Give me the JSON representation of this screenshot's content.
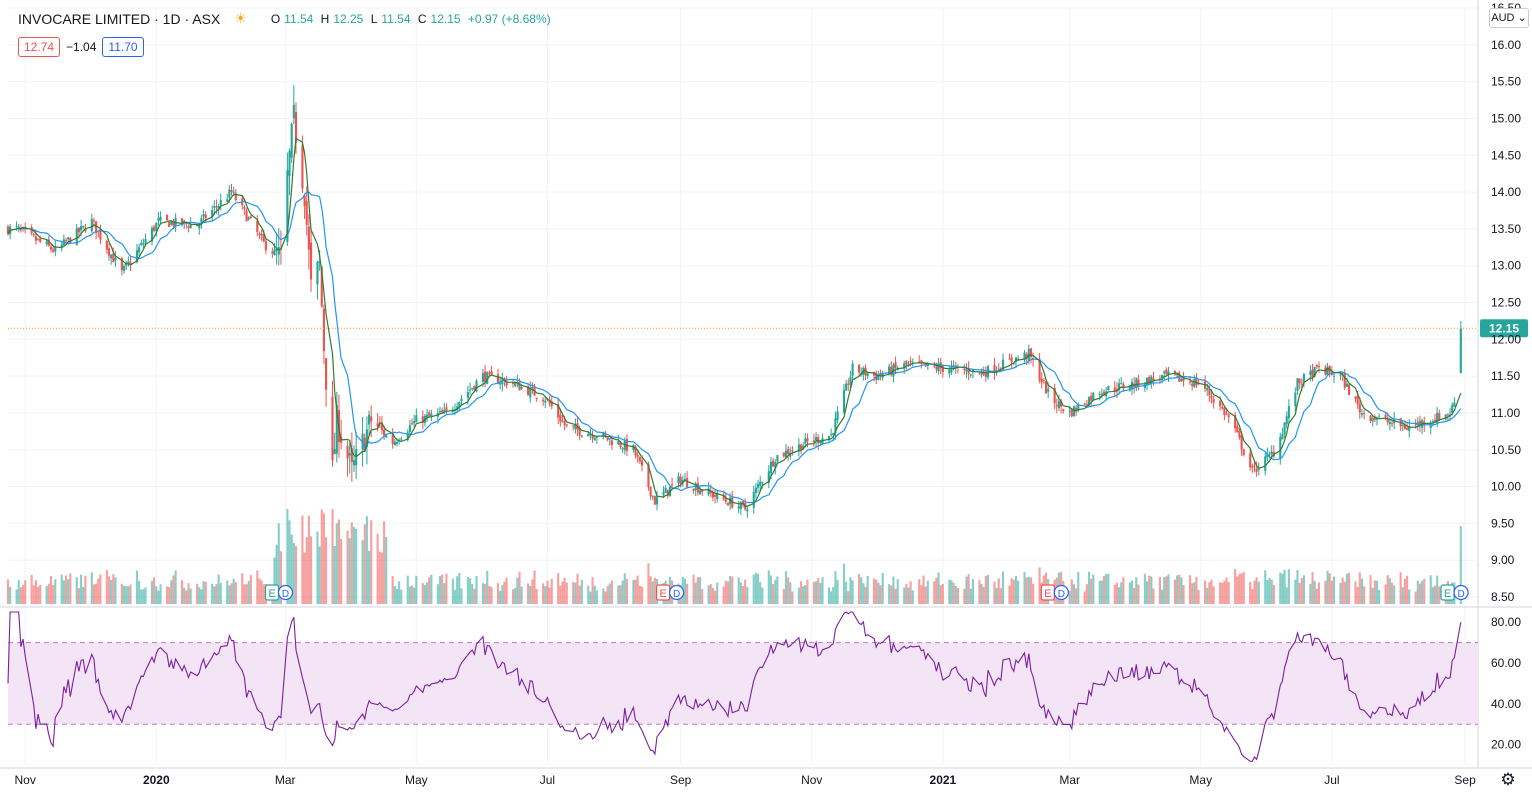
{
  "header": {
    "symbol": "INVOCARE LIMITED · 1D · ASX",
    "weather_icon": "sun-icon",
    "ohlc": {
      "open_label": "O",
      "open": "11.54",
      "high_label": "H",
      "high": "12.25",
      "low_label": "L",
      "low": "11.54",
      "close_label": "C",
      "close": "12.15",
      "change": "+0.97 (+8.68%)"
    },
    "badges": {
      "left": "12.74",
      "middle": "−1.04",
      "right": "11.70"
    },
    "currency": "AUD"
  },
  "colors": {
    "up": "#26a69a",
    "down": "#ef5350",
    "ma_fast": "#2e7d32",
    "ma_slow": "#2196f3",
    "rsi_line": "#7b1fa2",
    "rsi_band": "#f3e5f5",
    "price_line": "#ff9800",
    "grid": "#f0f3fa"
  },
  "chart_data": [
    {
      "type": "candlestick",
      "title": "INVOCARE LIMITED · 1D · ASX",
      "y_ticks": [
        "8.50",
        "9.00",
        "9.50",
        "10.00",
        "10.50",
        "11.00",
        "11.50",
        "12.00",
        "12.50",
        "13.00",
        "13.50",
        "14.00",
        "14.50",
        "15.00",
        "15.50",
        "16.00",
        "16.50"
      ],
      "ylim": [
        8.5,
        16.5
      ],
      "x_ticks": [
        "Nov",
        "2020",
        "Mar",
        "May",
        "Jul",
        "Sep",
        "Nov",
        "2021",
        "Mar",
        "May",
        "Jul",
        "Sep"
      ],
      "x_tick_bold": [
        "2020",
        "2021"
      ],
      "last_price": "12.15",
      "last_price_value": 12.15,
      "close_anchors": [
        [
          "2019-10-28",
          13.5
        ],
        [
          "2019-11-15",
          13.2
        ],
        [
          "2019-12-02",
          13.6
        ],
        [
          "2019-12-16",
          12.9
        ],
        [
          "2020-01-02",
          13.6
        ],
        [
          "2020-01-20",
          13.55
        ],
        [
          "2020-02-05",
          14.0
        ],
        [
          "2020-02-20",
          13.3
        ],
        [
          "2020-02-28",
          13.1
        ],
        [
          "2020-03-02",
          14.2
        ],
        [
          "2020-03-05",
          15.0
        ],
        [
          "2020-03-10",
          14.0
        ],
        [
          "2020-03-13",
          12.7
        ],
        [
          "2020-03-17",
          13.0
        ],
        [
          "2020-03-19",
          11.9
        ],
        [
          "2020-03-23",
          10.2
        ],
        [
          "2020-03-25",
          10.9
        ],
        [
          "2020-04-01",
          10.2
        ],
        [
          "2020-04-10",
          10.9
        ],
        [
          "2020-04-20",
          10.6
        ],
        [
          "2020-05-01",
          10.9
        ],
        [
          "2020-05-15",
          11.0
        ],
        [
          "2020-06-01",
          11.5
        ],
        [
          "2020-06-15",
          11.4
        ],
        [
          "2020-06-30",
          11.2
        ],
        [
          "2020-07-10",
          10.8
        ],
        [
          "2020-07-25",
          10.7
        ],
        [
          "2020-08-10",
          10.5
        ],
        [
          "2020-08-20",
          9.8
        ],
        [
          "2020-09-01",
          10.1
        ],
        [
          "2020-09-15",
          9.9
        ],
        [
          "2020-10-01",
          9.7
        ],
        [
          "2020-10-15",
          10.4
        ],
        [
          "2020-10-30",
          10.6
        ],
        [
          "2020-11-10",
          10.7
        ],
        [
          "2020-11-20",
          11.6
        ],
        [
          "2020-12-01",
          11.5
        ],
        [
          "2020-12-15",
          11.65
        ],
        [
          "2021-01-04",
          11.6
        ],
        [
          "2021-01-20",
          11.55
        ],
        [
          "2021-02-01",
          11.7
        ],
        [
          "2021-02-10",
          11.8
        ],
        [
          "2021-02-20",
          11.2
        ],
        [
          "2021-03-01",
          11.0
        ],
        [
          "2021-03-15",
          11.3
        ],
        [
          "2021-04-01",
          11.4
        ],
        [
          "2021-04-15",
          11.5
        ],
        [
          "2021-05-01",
          11.4
        ],
        [
          "2021-05-15",
          10.9
        ],
        [
          "2021-05-25",
          10.2
        ],
        [
          "2021-06-05",
          10.5
        ],
        [
          "2021-06-15",
          11.4
        ],
        [
          "2021-06-25",
          11.6
        ],
        [
          "2021-07-05",
          11.5
        ],
        [
          "2021-07-15",
          11.0
        ],
        [
          "2021-07-25",
          10.9
        ],
        [
          "2021-08-05",
          10.8
        ],
        [
          "2021-08-15",
          10.9
        ],
        [
          "2021-08-25",
          11.0
        ],
        [
          "2021-08-29",
          11.3
        ],
        [
          "2021-08-30",
          12.15
        ]
      ],
      "series": [
        {
          "name": "",
          "kind": "sma_fast"
        },
        {
          "name": "",
          "kind": "sma_slow"
        }
      ]
    },
    {
      "type": "bar",
      "title": "",
      "description": "volume histogram beneath price",
      "colors_by_candle": true
    },
    {
      "type": "line",
      "title": "",
      "y_ticks": [
        "20.00",
        "40.00",
        "60.00",
        "80.00"
      ],
      "ylim": [
        10,
        85
      ],
      "bands": [
        30,
        70
      ],
      "last_value": 80
    }
  ],
  "event_markers": [
    {
      "date": "2020-02-25",
      "labels": [
        "E",
        "D"
      ],
      "tone": "green"
    },
    {
      "date": "2020-08-25",
      "labels": [
        "E",
        "D"
      ],
      "tone": "red"
    },
    {
      "date": "2021-02-20",
      "labels": [
        "E",
        "D"
      ],
      "tone": "red"
    },
    {
      "date": "2021-08-25",
      "labels": [
        "E",
        "D"
      ],
      "tone": "green"
    }
  ]
}
